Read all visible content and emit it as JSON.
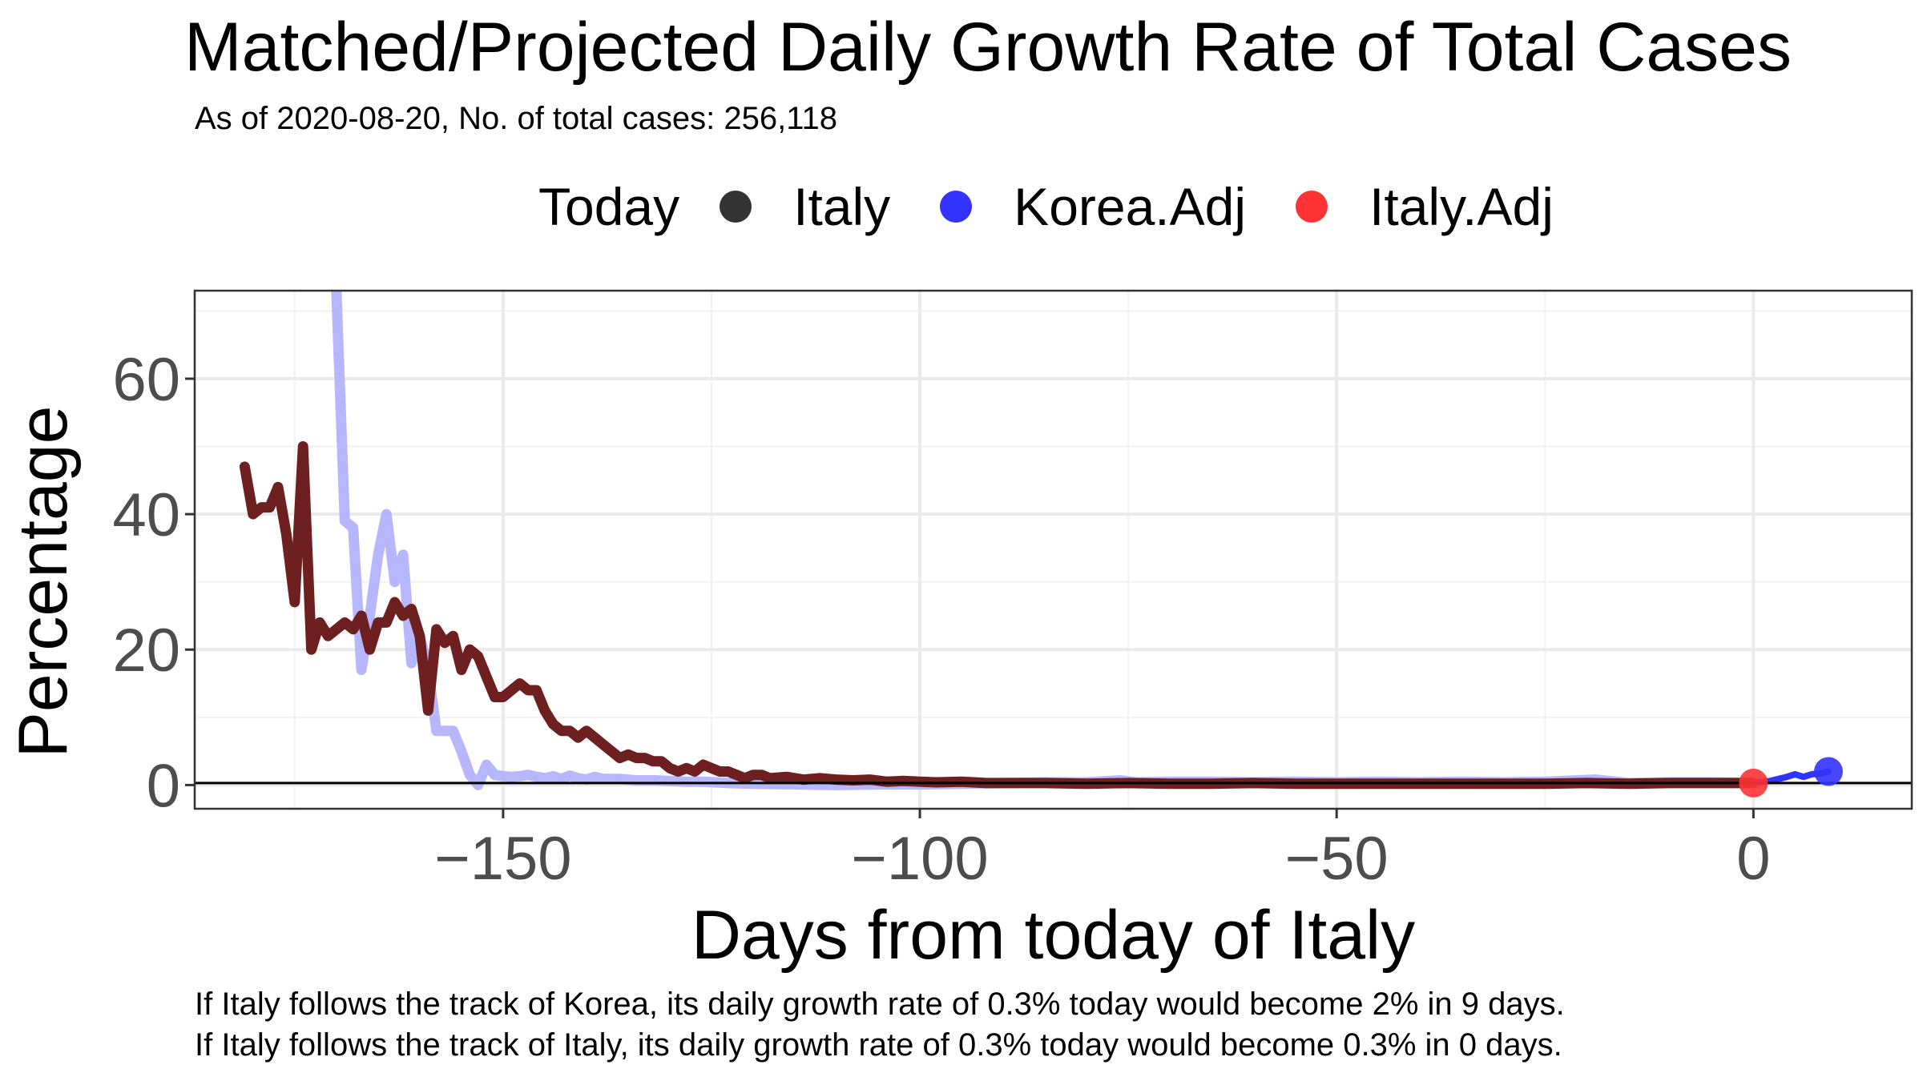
{
  "title": "Matched/Projected Daily Growth Rate of Total Cases",
  "subtitle": "As of 2020-08-20, No. of total cases: 256,118",
  "legend": {
    "title": "Today",
    "items": [
      {
        "label": "Italy",
        "color": "#333333"
      },
      {
        "label": "Korea.Adj",
        "color": "#3333ff"
      },
      {
        "label": "Italy.Adj",
        "color": "#ff3333"
      }
    ]
  },
  "captions": [
    "If Italy follows the track of Korea, its daily growth rate of 0.3% today would become 2% in 9 days.",
    "If Italy follows the track of Italy, its daily growth rate of 0.3% today would become 0.3% in 0 days."
  ],
  "chart_data": {
    "type": "line",
    "xlabel": "Days from today of Italy",
    "ylabel": "Percentage",
    "xlim": [
      -187,
      19
    ],
    "ylim": [
      -3.5,
      73
    ],
    "xticks": [
      -150,
      -100,
      -50,
      0
    ],
    "yticks": [
      0,
      20,
      40,
      60
    ],
    "hline": 0.3,
    "grid": true,
    "legend_position": "top",
    "series": [
      {
        "name": "Korea.Adj",
        "color": "#b3b3ff",
        "points": [
          [
            -170,
            73
          ],
          [
            -169,
            39
          ],
          [
            -168,
            38
          ],
          [
            -167,
            17
          ],
          [
            -166,
            25
          ],
          [
            -165,
            34
          ],
          [
            -164,
            40
          ],
          [
            -163,
            30
          ],
          [
            -162,
            34
          ],
          [
            -161,
            18
          ],
          [
            -160,
            22
          ],
          [
            -159,
            17
          ],
          [
            -158,
            8
          ],
          [
            -157,
            8
          ],
          [
            -156,
            8
          ],
          [
            -155,
            5
          ],
          [
            -154,
            1.5
          ],
          [
            -153,
            0
          ],
          [
            -152,
            3
          ],
          [
            -151,
            1.5
          ],
          [
            -150,
            1.3
          ],
          [
            -149,
            1.2
          ],
          [
            -148,
            1.3
          ],
          [
            -147,
            1.5
          ],
          [
            -146,
            1.2
          ],
          [
            -145,
            1
          ],
          [
            -144,
            1.3
          ],
          [
            -143,
            0.9
          ],
          [
            -142,
            1.4
          ],
          [
            -141,
            1
          ],
          [
            -140,
            0.8
          ],
          [
            -139,
            1.2
          ],
          [
            -138,
            0.9
          ],
          [
            -136,
            0.9
          ],
          [
            -134,
            0.7
          ],
          [
            -132,
            0.7
          ],
          [
            -130,
            0.6
          ],
          [
            -128,
            0.5
          ],
          [
            -126,
            0.5
          ],
          [
            -123,
            0.3
          ],
          [
            -120,
            0.2
          ],
          [
            -115,
            0.1
          ],
          [
            -110,
            0.0
          ],
          [
            -105,
            0.1
          ],
          [
            -100,
            0.1
          ],
          [
            -95,
            0.2
          ],
          [
            -90,
            0.3
          ],
          [
            -85,
            0.4
          ],
          [
            -80,
            0.4
          ],
          [
            -76,
            0.7
          ],
          [
            -74,
            0.4
          ],
          [
            -70,
            0.5
          ],
          [
            -65,
            0.5
          ],
          [
            -60,
            0.4
          ],
          [
            -55,
            0.5
          ],
          [
            -50,
            0.4
          ],
          [
            -45,
            0.5
          ],
          [
            -40,
            0.4
          ],
          [
            -35,
            0.5
          ],
          [
            -30,
            0.4
          ],
          [
            -25,
            0.5
          ],
          [
            -19,
            0.8
          ],
          [
            -15,
            0.3
          ],
          [
            -10,
            0.4
          ],
          [
            -5,
            0.4
          ],
          [
            0,
            0.3
          ]
        ]
      },
      {
        "name": "Italy",
        "color": "#6e2020",
        "points": [
          [
            -181,
            47
          ],
          [
            -180,
            40
          ],
          [
            -179,
            41
          ],
          [
            -178,
            41
          ],
          [
            -177,
            44
          ],
          [
            -176,
            37
          ],
          [
            -175,
            27
          ],
          [
            -174,
            50
          ],
          [
            -173,
            20
          ],
          [
            -172,
            24
          ],
          [
            -171,
            22
          ],
          [
            -170,
            23
          ],
          [
            -169,
            24
          ],
          [
            -168,
            23
          ],
          [
            -167,
            25
          ],
          [
            -166,
            20
          ],
          [
            -165,
            24
          ],
          [
            -164,
            24
          ],
          [
            -163,
            27
          ],
          [
            -162,
            25
          ],
          [
            -161,
            26
          ],
          [
            -160,
            22
          ],
          [
            -159,
            11
          ],
          [
            -158,
            23
          ],
          [
            -157,
            21
          ],
          [
            -156,
            22
          ],
          [
            -155,
            17
          ],
          [
            -154,
            20
          ],
          [
            -153,
            19
          ],
          [
            -152,
            16
          ],
          [
            -151,
            13
          ],
          [
            -150,
            13
          ],
          [
            -149,
            14
          ],
          [
            -148,
            15
          ],
          [
            -147,
            14
          ],
          [
            -146,
            14
          ],
          [
            -145,
            11
          ],
          [
            -144,
            9
          ],
          [
            -143,
            8
          ],
          [
            -142,
            8
          ],
          [
            -141,
            7
          ],
          [
            -140,
            8
          ],
          [
            -139,
            7
          ],
          [
            -138,
            6
          ],
          [
            -137,
            5
          ],
          [
            -136,
            4
          ],
          [
            -135,
            4.5
          ],
          [
            -134,
            4
          ],
          [
            -133,
            4
          ],
          [
            -132,
            3.5
          ],
          [
            -131,
            3.5
          ],
          [
            -130,
            2.5
          ],
          [
            -129,
            2
          ],
          [
            -128,
            2.5
          ],
          [
            -127,
            2
          ],
          [
            -126,
            3
          ],
          [
            -125,
            2.5
          ],
          [
            -124,
            2
          ],
          [
            -123,
            2
          ],
          [
            -122,
            1.5
          ],
          [
            -121,
            1
          ],
          [
            -120,
            1.5
          ],
          [
            -119,
            1.5
          ],
          [
            -118,
            1
          ],
          [
            -116,
            1.2
          ],
          [
            -114,
            0.8
          ],
          [
            -112,
            1
          ],
          [
            -110,
            0.8
          ],
          [
            -108,
            0.7
          ],
          [
            -106,
            0.8
          ],
          [
            -104,
            0.5
          ],
          [
            -102,
            0.6
          ],
          [
            -100,
            0.5
          ],
          [
            -98,
            0.4
          ],
          [
            -95,
            0.5
          ],
          [
            -92,
            0.3
          ],
          [
            -90,
            0.3
          ],
          [
            -85,
            0.3
          ],
          [
            -80,
            0.2
          ],
          [
            -75,
            0.3
          ],
          [
            -70,
            0.2
          ],
          [
            -65,
            0.2
          ],
          [
            -60,
            0.3
          ],
          [
            -55,
            0.2
          ],
          [
            -50,
            0.2
          ],
          [
            -45,
            0.2
          ],
          [
            -40,
            0.2
          ],
          [
            -35,
            0.2
          ],
          [
            -30,
            0.2
          ],
          [
            -25,
            0.2
          ],
          [
            -20,
            0.3
          ],
          [
            -15,
            0.2
          ],
          [
            -10,
            0.3
          ],
          [
            -5,
            0.3
          ],
          [
            0,
            0.3
          ]
        ]
      },
      {
        "name": "Korea.Adj projection",
        "color": "#3333ff",
        "points": [
          [
            0,
            0.3
          ],
          [
            2,
            0.6
          ],
          [
            3,
            0.9
          ],
          [
            4,
            1.2
          ],
          [
            5,
            1.6
          ],
          [
            6,
            1.2
          ],
          [
            7,
            1.6
          ],
          [
            8,
            1.7
          ],
          [
            9,
            2.0
          ]
        ]
      }
    ],
    "markers": [
      {
        "name": "Italy.Adj",
        "x": 0,
        "y": 0.3,
        "color": "#ff3333"
      },
      {
        "name": "Korea.Adj",
        "x": 9,
        "y": 2.0,
        "color": "#3333ff"
      }
    ]
  }
}
